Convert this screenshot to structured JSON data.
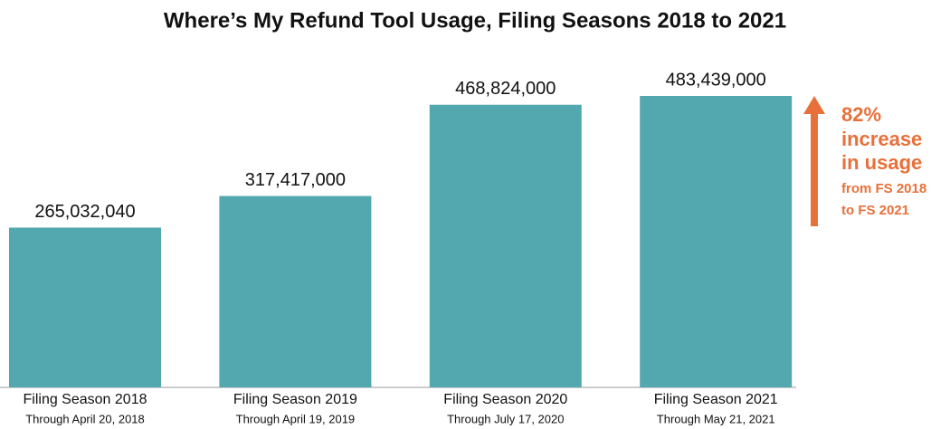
{
  "chart_data": {
    "type": "bar",
    "title": "Where’s My Refund Tool Usage, Filing Seasons 2018 to 2021",
    "categories": [
      "Filing Season 2018",
      "Filing Season 2019",
      "Filing Season 2020",
      "Filing Season 2021"
    ],
    "subcategories": [
      "Through April 20, 2018",
      "Through April 19, 2019",
      "Through July 17, 2020",
      "Through May 21, 2021"
    ],
    "values": [
      265032040,
      317417000,
      468824000,
      483439000
    ],
    "value_labels": [
      "265,032,040",
      "317,417,000",
      "468,824,000",
      "483,439,000"
    ],
    "color": "#52a8ae",
    "annotation": {
      "color": "#e8703a",
      "lines": [
        "82%",
        "increase",
        "in usage",
        "from FS 2018",
        "to FS 2021"
      ]
    }
  }
}
